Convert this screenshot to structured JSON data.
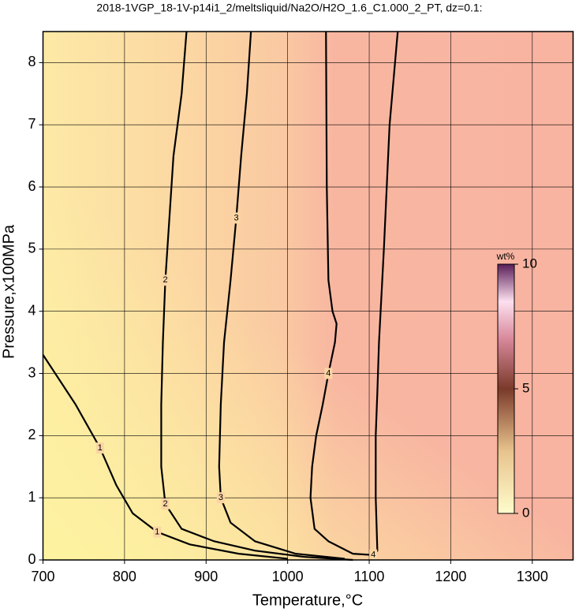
{
  "chart_data": {
    "type": "contour",
    "title": "2018-1VGP_18-1V-p14i1_2/meltsliquid/Na2O/H2O_1.6_C1.000_2_PT, dz=0.1:",
    "x_label": "Temperature,°C",
    "y_label": "Pressure,x100MPa",
    "xlim": [
      700,
      1350
    ],
    "ylim": [
      0,
      8.5
    ],
    "xticks": [
      700,
      800,
      900,
      1000,
      1100,
      1200,
      1300
    ],
    "yticks": [
      0,
      1,
      2,
      3,
      4,
      5,
      6,
      7,
      8
    ],
    "grid": true,
    "contours": [
      {
        "level": 1,
        "x": [
          700,
          740,
          770,
          790,
          810,
          840,
          880,
          940,
          1000
        ],
        "y": [
          3.3,
          2.5,
          1.8,
          1.2,
          0.75,
          0.45,
          0.25,
          0.1,
          0.02
        ]
      },
      {
        "level": 2,
        "x": [
          876,
          870,
          860,
          855,
          850,
          847,
          845,
          845,
          850,
          870,
          910,
          960,
          1020,
          1080
        ],
        "y": [
          8.5,
          7.5,
          6.5,
          5.5,
          4.5,
          3.5,
          2.5,
          1.5,
          0.9,
          0.5,
          0.3,
          0.15,
          0.05,
          0
        ]
      },
      {
        "level": 3,
        "x": [
          955,
          950,
          943,
          937,
          930,
          922,
          918,
          916,
          918,
          930,
          960,
          1010,
          1070
        ],
        "y": [
          8.5,
          7.5,
          6.5,
          5.5,
          4.5,
          3.5,
          2.5,
          1.5,
          1.0,
          0.6,
          0.3,
          0.1,
          0.02
        ]
      },
      {
        "level": 4,
        "x": [
          1047,
          1048,
          1050,
          1055,
          1060,
          1058,
          1050,
          1043,
          1035,
          1030,
          1028,
          1033,
          1050,
          1080,
          1105,
          1110,
          1108,
          1108,
          1110,
          1112,
          1118,
          1125,
          1135
        ],
        "y": [
          8.5,
          6,
          4.5,
          4.0,
          3.8,
          3.5,
          3.0,
          2.5,
          2.0,
          1.5,
          1.0,
          0.5,
          0.3,
          0.1,
          0.08,
          0.15,
          1.0,
          2.0,
          2.7,
          3.5,
          5,
          7,
          8.5
        ]
      }
    ],
    "colorbar": {
      "label": "wt%",
      "lim": [
        0,
        10
      ],
      "ticks": [
        0,
        5,
        10
      ]
    }
  }
}
